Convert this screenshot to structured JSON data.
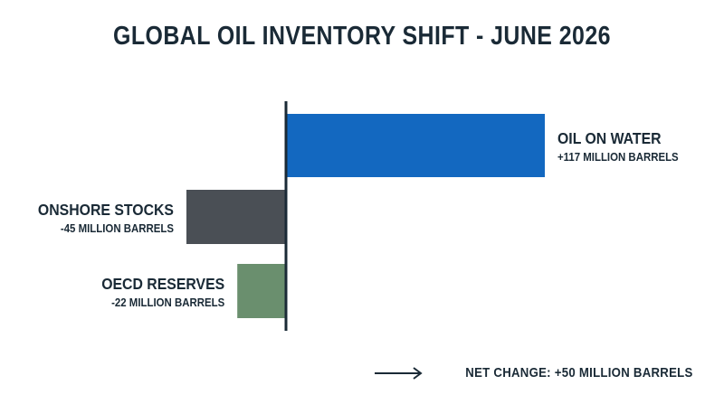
{
  "chart_data": {
    "type": "bar",
    "orientation": "horizontal",
    "title": "GLOBAL OIL INVENTORY SHIFT - JUNE 2026",
    "categories": [
      "OIL ON WATER",
      "ONSHORE STOCKS",
      "OECD RESERVES"
    ],
    "values": [
      117,
      -45,
      -22
    ],
    "value_labels": [
      "+117 MILLION BARRELS",
      "-45 MILLION BARRELS",
      "-22 MILLION BARRELS"
    ],
    "colors": [
      "#1368c0",
      "#4a4f55",
      "#6a8f6e"
    ],
    "unit": "MILLION BARRELS",
    "xlim": [
      -45,
      117
    ],
    "grid": false,
    "legend": "none"
  },
  "footer": {
    "icon": "arrow-right-icon",
    "text": "NET CHANGE: +50 MILLION BARRELS"
  },
  "colors": {
    "axis": "#1a2a36",
    "text": "#1a2a36"
  }
}
